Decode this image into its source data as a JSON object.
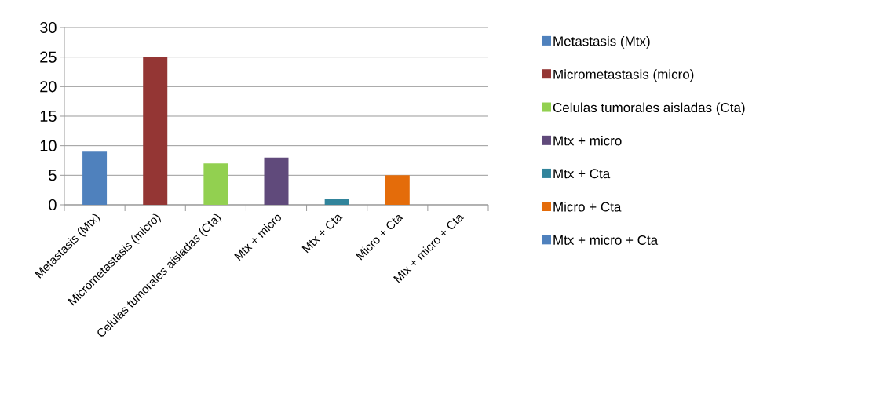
{
  "chart_data": {
    "type": "bar",
    "categories": [
      "Metastasis (Mtx)",
      "Micrometastasis (micro)",
      "Celulas tumorales aisladas (Cta)",
      "Mtx + micro",
      "Mtx + Cta",
      "Micro + Cta",
      "Mtx + micro + Cta"
    ],
    "series": [
      {
        "name": "Metastasis (Mtx)",
        "color": "#4f81bd",
        "values": [
          9,
          null,
          null,
          null,
          null,
          null,
          null
        ]
      },
      {
        "name": "Micrometastasis (micro)",
        "color": "#943634",
        "values": [
          null,
          25,
          null,
          null,
          null,
          null,
          null
        ]
      },
      {
        "name": "Celulas tumorales aisladas (Cta)",
        "color": "#92d050",
        "values": [
          null,
          null,
          7,
          null,
          null,
          null,
          null
        ]
      },
      {
        "name": "Mtx + micro",
        "color": "#604a7b",
        "values": [
          null,
          null,
          null,
          8,
          null,
          null,
          null
        ]
      },
      {
        "name": "Mtx + Cta",
        "color": "#31849b",
        "values": [
          null,
          null,
          null,
          null,
          1,
          null,
          null
        ]
      },
      {
        "name": "Micro + Cta",
        "color": "#e46c0a",
        "values": [
          null,
          null,
          null,
          null,
          null,
          5,
          null
        ]
      },
      {
        "name": "Mtx + micro + Cta",
        "color": "#4f81bd",
        "values": [
          null,
          null,
          null,
          null,
          null,
          null,
          0
        ]
      }
    ],
    "ylim": [
      0,
      30
    ],
    "yticks": [
      0,
      5,
      10,
      15,
      20,
      25,
      30
    ],
    "grid": "y",
    "legend": "right"
  }
}
